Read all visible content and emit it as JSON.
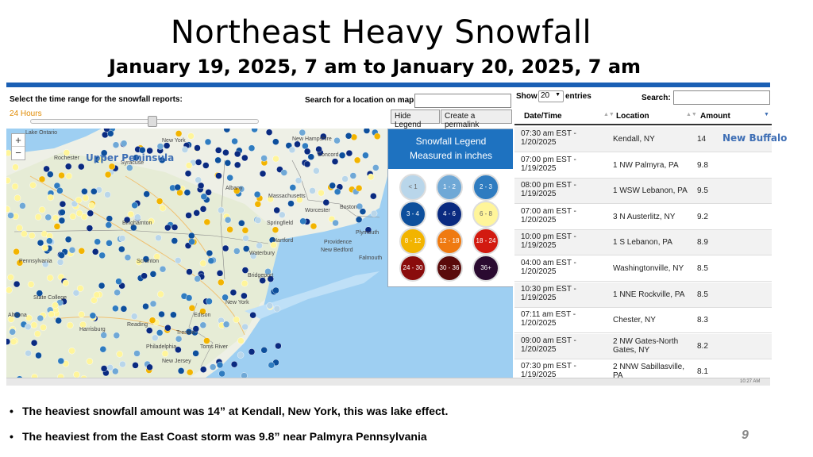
{
  "slide": {
    "title": "Northeast Heavy Snowfall",
    "subtitle": "January  19, 2025, 7 am to January 20, 2025,  7 am",
    "page_number": "9",
    "annotation_map": "Upper Peninsula",
    "annotation_table": "New Buffalo",
    "bullets": [
      "The heaviest snowfall amount was 14” at Kendall, New York, this was lake effect.",
      "The heaviest from the East Coast storm was 9.8” near Palmyra Pennsylvania"
    ]
  },
  "map_controls": {
    "time_range_label": "Select the time range for the snowfall reports:",
    "time_range_value": "24 Hours",
    "search_label": "Search for a location on map:",
    "search_value": "",
    "hide_legend_label": "Hide Legend",
    "permalink_label": "Create a permalink",
    "zoom_in": "+",
    "zoom_out": "−"
  },
  "legend": {
    "title_line1": "Snowfall Legend",
    "title_line2": "Measured in inches",
    "bins": [
      {
        "label": "< 1",
        "color": "#b9d6ea"
      },
      {
        "label": "1 - 2",
        "color": "#6fa8d6"
      },
      {
        "label": "2 - 3",
        "color": "#2f7cc0"
      },
      {
        "label": "3 - 4",
        "color": "#0d4f9c"
      },
      {
        "label": "4 - 6",
        "color": "#0a2a80"
      },
      {
        "label": "6 - 8",
        "color": "#fff59a"
      },
      {
        "label": "8 - 12",
        "color": "#f2b400"
      },
      {
        "label": "12 - 18",
        "color": "#ef7a10"
      },
      {
        "label": "18 - 24",
        "color": "#d21a10"
      },
      {
        "label": "24 - 30",
        "color": "#8a0c0c"
      },
      {
        "label": "30 - 36",
        "color": "#5a0a0a"
      },
      {
        "label": "36+",
        "color": "#2a0a30"
      }
    ]
  },
  "map_labels": {
    "lake_ontario": "Lake Ontario",
    "new_york": "New York",
    "rochester": "Rochester",
    "syracuse": "Syracuse",
    "new_hampshire": "New Hampshire",
    "concord": "Concord",
    "albany": "Albany",
    "binghamton": "Binghamton",
    "massachusetts": "Massachusetts",
    "boston": "Boston",
    "springfield": "Springfield",
    "worcester": "Worcester",
    "providence": "Providence",
    "plymouth": "Plymouth",
    "pennsylvania": "Pennsylvania",
    "scranton": "Scranton",
    "hartford": "Hartford",
    "waterbury": "Waterbury",
    "new_bedford": "New Bedford",
    "falmouth": "Falmouth",
    "bridgeport": "Bridgeport",
    "new_york_city": "New York",
    "state_college": "State College",
    "harrisburg": "Harrisburg",
    "philadelphia": "Philadelphia",
    "new_jersey": "New Jersey",
    "edison": "Edison",
    "trenton": "Trenton",
    "toms_river": "Toms River",
    "altoona": "Altoona",
    "reading": "Reading"
  },
  "table": {
    "show_label": "Show",
    "show_value": "20",
    "entries_label": "entries",
    "search_label": "Search:",
    "search_value": "",
    "headers": [
      "Date/Time",
      "Location",
      "Amount"
    ],
    "rows": [
      {
        "time1": "07:30 am EST -",
        "time2": "1/20/2025",
        "location": "Kendall, NY",
        "amount": "14"
      },
      {
        "time1": "07:00 pm EST -",
        "time2": "1/19/2025",
        "location": "1 NW Palmyra, PA",
        "amount": "9.8"
      },
      {
        "time1": "08:00 pm EST -",
        "time2": "1/19/2025",
        "location": "1 WSW Lebanon, PA",
        "amount": "9.5"
      },
      {
        "time1": "07:00 am EST -",
        "time2": "1/20/2025",
        "location": "3 N Austerlitz, NY",
        "amount": "9.2"
      },
      {
        "time1": "10:00 pm EST -",
        "time2": "1/19/2025",
        "location": "1 S Lebanon, PA",
        "amount": "8.9"
      },
      {
        "time1": "04:00 am EST -",
        "time2": "1/20/2025",
        "location": "Washingtonville, NY",
        "amount": "8.5"
      },
      {
        "time1": "10:30 pm EST -",
        "time2": "1/19/2025",
        "location": "1 NNE Rockville, PA",
        "amount": "8.5"
      },
      {
        "time1": "07:11 am EST -",
        "time2": "1/20/2025",
        "location": "Chester, NY",
        "amount": "8.3"
      },
      {
        "time1": "09:00 am EST -",
        "time2": "1/20/2025",
        "location": "2 NW Gates-North Gates, NY",
        "amount": "8.2"
      },
      {
        "time1": "07:30 pm EST -",
        "time2": "1/19/2025",
        "location": "2 NNW Sabillasville, PA",
        "amount": "8.1"
      }
    ]
  },
  "taskbar": {
    "clock": "10:27 AM"
  }
}
